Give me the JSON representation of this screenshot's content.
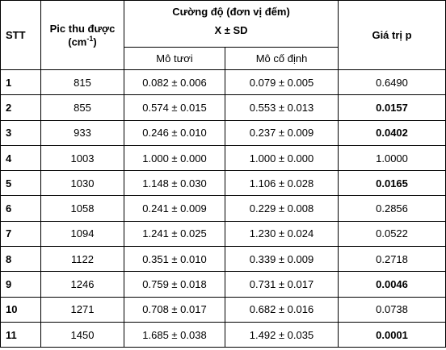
{
  "header": {
    "stt": "STT",
    "peak": "Pic thu được",
    "peak_unit_open": "(cm",
    "peak_unit_exp": "-1",
    "peak_unit_close": ")",
    "intensity": "Cường độ (đơn vị đếm)",
    "intensity_sub": "X ± SD",
    "fresh": "Mô tươi",
    "fixed": "Mô cố định",
    "p": "Giá trị p"
  },
  "table": {
    "rows": [
      [
        "1",
        "815",
        "0.082 ± 0.006",
        "0.079 ± 0.005",
        "0.6490"
      ],
      [
        "2",
        "855",
        "0.574 ± 0.015",
        "0.553 ± 0.013",
        "0.0157"
      ],
      [
        "3",
        "933",
        "0.246 ± 0.010",
        "0.237 ± 0.009",
        "0.0402"
      ],
      [
        "4",
        "1003",
        "1.000 ± 0.000",
        "1.000 ± 0.000",
        "1.0000"
      ],
      [
        "5",
        "1030",
        "1.148 ± 0.030",
        "1.106 ± 0.028",
        "0.0165"
      ],
      [
        "6",
        "1058",
        "0.241 ± 0.009",
        "0.229 ± 0.008",
        "0.2856"
      ],
      [
        "7",
        "1094",
        "1.241 ± 0.025",
        "1.230 ± 0.024",
        "0.0522"
      ],
      [
        "8",
        "1122",
        "0.351 ± 0.010",
        "0.339 ± 0.009",
        "0.2718"
      ],
      [
        "9",
        "1246",
        "0.759 ± 0.018",
        "0.731 ± 0.017",
        "0.0046"
      ],
      [
        "10",
        "1271",
        "0.708 ± 0.017",
        "0.682 ± 0.016",
        "0.0738"
      ],
      [
        "11",
        "1450",
        "1.685 ± 0.038",
        "1.492 ± 0.035",
        "0.0001"
      ]
    ],
    "bold_p": [
      false,
      true,
      true,
      false,
      true,
      false,
      false,
      false,
      true,
      false,
      true
    ]
  }
}
